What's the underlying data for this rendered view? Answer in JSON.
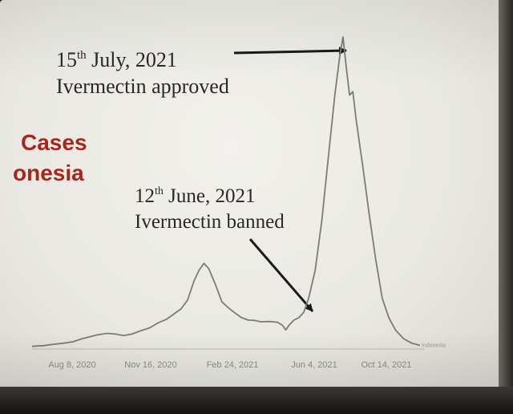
{
  "header": {
    "label_line1": "Cases",
    "label_line2": "onesia"
  },
  "annotations": {
    "approved_day": "15",
    "approved_suffix": "th",
    "approved_rest": " July, 2021",
    "approved_text": "Ivermectin approved",
    "banned_day": "12",
    "banned_suffix": "th",
    "banned_rest": " June, 2021",
    "banned_text": "Ivermectin banned"
  },
  "chart_data": {
    "type": "line",
    "x_ticks": [
      "Aug 8, 2020",
      "Nov 16, 2020",
      "Feb 24, 2021",
      "Jun 4, 2021",
      "Oct 14, 2021"
    ],
    "series": [
      {
        "name": "Indonesia",
        "color": "#7d7b78",
        "points": [
          [
            0,
            0.3
          ],
          [
            7,
            0.5
          ],
          [
            13,
            0.9
          ],
          [
            19,
            1.2
          ],
          [
            25,
            1.6
          ],
          [
            30,
            2.4
          ],
          [
            35,
            3.0
          ],
          [
            40,
            3.6
          ],
          [
            46,
            4.0
          ],
          [
            51,
            3.8
          ],
          [
            56,
            3.4
          ],
          [
            61,
            3.8
          ],
          [
            66,
            4.7
          ],
          [
            72,
            5.6
          ],
          [
            77,
            7.0
          ],
          [
            82,
            8.0
          ],
          [
            86,
            9.3
          ],
          [
            91,
            11.0
          ],
          [
            95,
            13.5
          ],
          [
            99,
            19.0
          ],
          [
            102,
            22.0
          ],
          [
            105,
            24.0
          ],
          [
            108,
            22.5
          ],
          [
            112,
            18.0
          ],
          [
            116,
            13.0
          ],
          [
            120,
            11.3
          ],
          [
            124,
            9.8
          ],
          [
            128,
            8.5
          ],
          [
            132,
            7.8
          ],
          [
            136,
            7.7
          ],
          [
            140,
            7.3
          ],
          [
            145,
            7.4
          ],
          [
            150,
            7.2
          ],
          [
            153,
            6.3
          ],
          [
            155,
            5.0
          ],
          [
            157,
            6.3
          ],
          [
            160,
            7.8
          ],
          [
            163,
            8.5
          ],
          [
            166,
            10.0
          ],
          [
            169,
            14.0
          ],
          [
            173,
            22.0
          ],
          [
            177,
            36.0
          ],
          [
            181,
            54.0
          ],
          [
            185,
            72.0
          ],
          [
            188,
            83.0
          ],
          [
            190,
            88.6
          ],
          [
            192,
            80.0
          ],
          [
            194,
            72.0
          ],
          [
            196,
            73.0
          ],
          [
            198,
            65.0
          ],
          [
            202,
            52.0
          ],
          [
            206,
            38.0
          ],
          [
            210,
            25.0
          ],
          [
            214,
            14.0
          ],
          [
            218,
            8.5
          ],
          [
            222,
            5.0
          ],
          [
            227,
            2.5
          ],
          [
            232,
            1.2
          ],
          [
            237,
            0.6
          ]
        ]
      }
    ],
    "series_label": "Indonesia",
    "grid": false,
    "legend": "none"
  }
}
